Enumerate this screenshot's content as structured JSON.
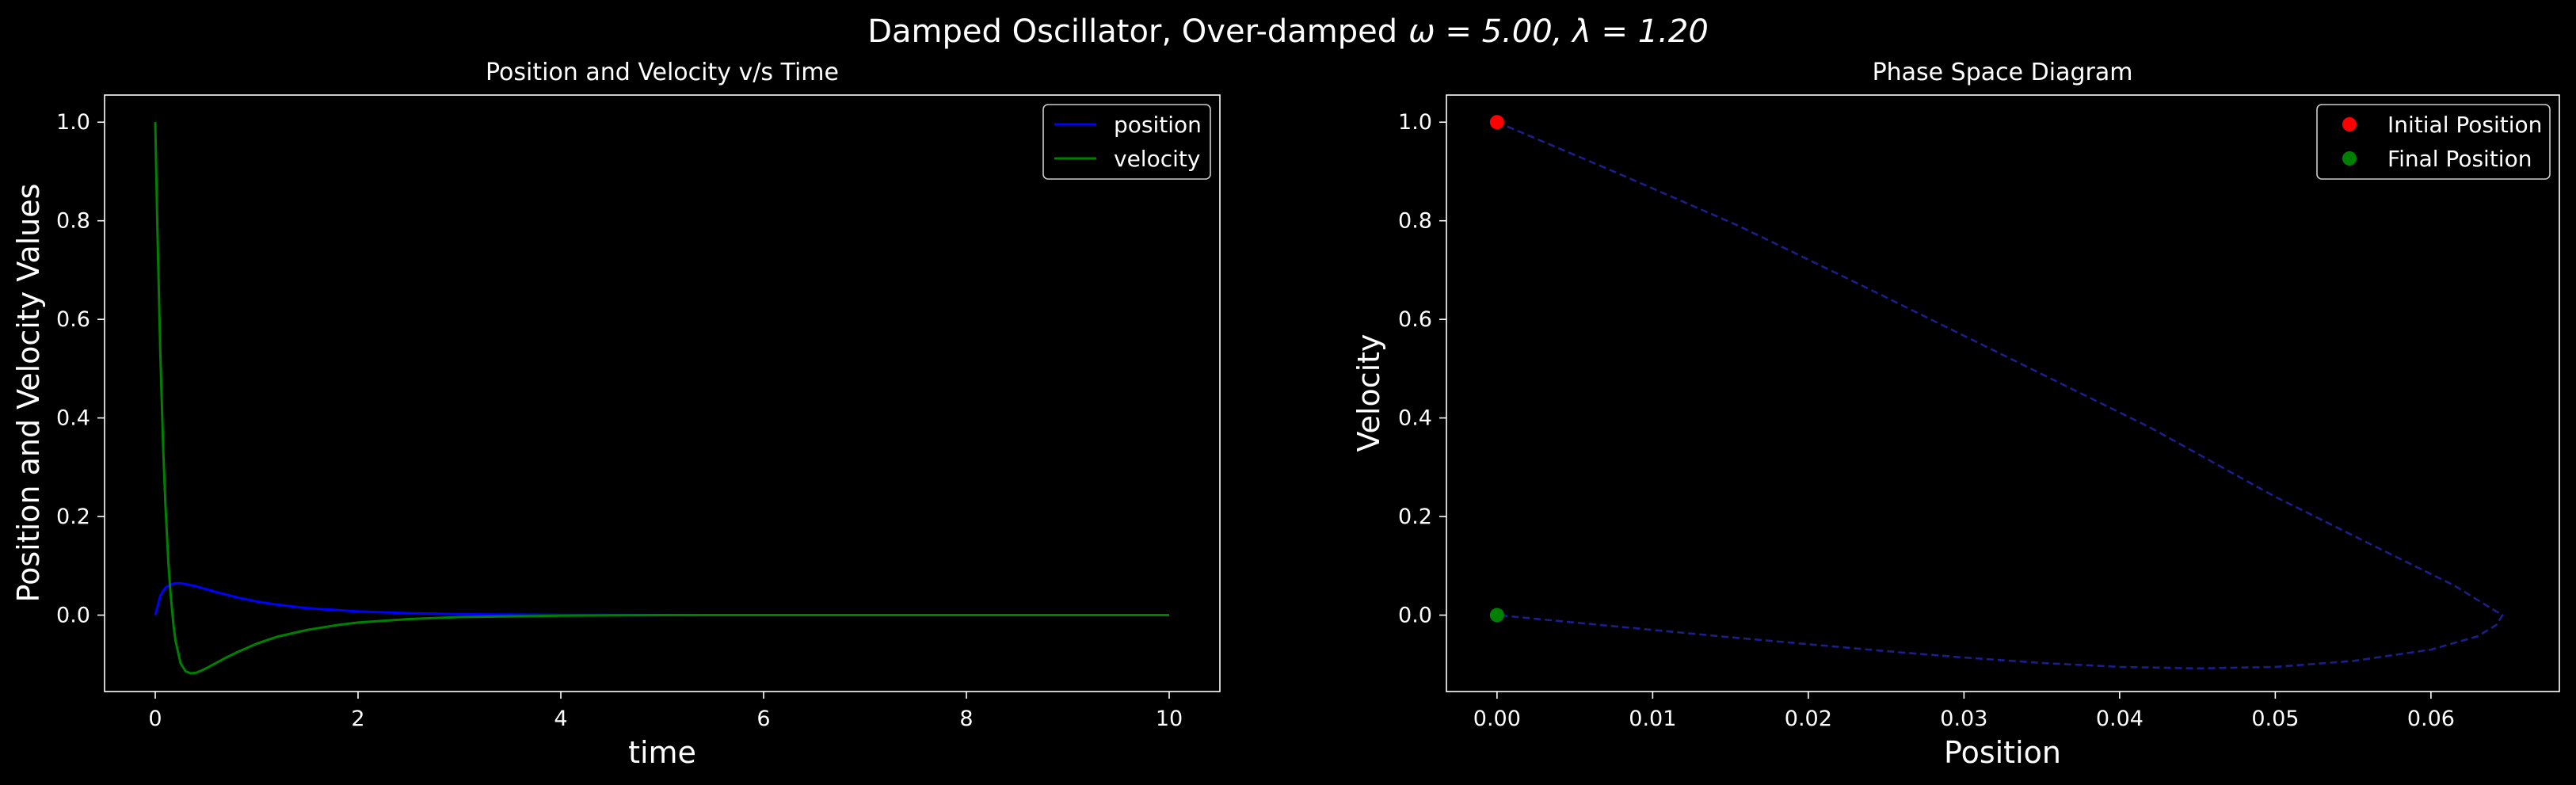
{
  "figure": {
    "suptitle": "Damped Oscillator, Over-damped",
    "suptitle_params": "ω = 5.00, λ = 1.20"
  },
  "colors": {
    "background": "#000000",
    "foreground": "#ffffff",
    "position": "#0000ff",
    "velocity": "#008000",
    "phase_line": "#1a1f8a",
    "initial": "#ff0000",
    "final": "#008000"
  },
  "chart_data": [
    {
      "type": "line",
      "title": "Position and Velocity v/s Time",
      "xlabel": "time",
      "ylabel": "Position and Velocity Values",
      "xlim": [
        -0.5,
        10.5
      ],
      "ylim": [
        -0.155,
        1.055
      ],
      "xticks": [
        0,
        2,
        4,
        6,
        8,
        10
      ],
      "xtick_labels": [
        "0",
        "2",
        "4",
        "6",
        "8",
        "10"
      ],
      "yticks": [
        0.0,
        0.2,
        0.4,
        0.6,
        0.8,
        1.0
      ],
      "ytick_labels": [
        "0.0",
        "0.2",
        "0.4",
        "0.6",
        "0.8",
        "1.0"
      ],
      "legend_position": "upper right",
      "grid": false,
      "series": [
        {
          "name": "position",
          "color_key": "position",
          "x": [
            0,
            0.05,
            0.1,
            0.15,
            0.2,
            0.25,
            0.3,
            0.4,
            0.5,
            0.6,
            0.8,
            1.0,
            1.2,
            1.5,
            2.0,
            2.5,
            3.0,
            4.0,
            5.0,
            6.0,
            7.0,
            8.0,
            9.0,
            10.0
          ],
          "y": [
            0,
            0.0394,
            0.0558,
            0.0623,
            0.0646,
            0.0645,
            0.063,
            0.0585,
            0.0528,
            0.0468,
            0.0362,
            0.0277,
            0.0212,
            0.0141,
            0.0074,
            0.0039,
            0.002,
            0.0006,
            0.0002,
            0.0001,
            0.0,
            0.0,
            0.0,
            0.0
          ]
        },
        {
          "name": "velocity",
          "color_key": "velocity",
          "x": [
            0,
            0.02,
            0.05,
            0.08,
            0.1,
            0.13,
            0.15,
            0.18,
            0.2,
            0.25,
            0.3,
            0.35,
            0.4,
            0.45,
            0.5,
            0.6,
            0.7,
            0.8,
            1.0,
            1.2,
            1.5,
            1.8,
            2.0,
            2.5,
            3.0,
            4.0,
            5.0,
            6.0,
            7.0,
            8.0,
            9.0,
            10.0
          ],
          "y": [
            1.0,
            0.79,
            0.53,
            0.33,
            0.225,
            0.105,
            0.046,
            -0.02,
            -0.052,
            -0.098,
            -0.114,
            -0.118,
            -0.117,
            -0.113,
            -0.108,
            -0.097,
            -0.086,
            -0.076,
            -0.058,
            -0.044,
            -0.03,
            -0.02,
            -0.015,
            -0.008,
            -0.004,
            -0.001,
            0.0,
            0.0,
            0.0,
            0.0,
            0.0,
            0.0
          ]
        }
      ]
    },
    {
      "type": "line",
      "title": "Phase Space Diagram",
      "xlabel": "Position",
      "ylabel": "Velocity",
      "xlim": [
        -0.00325,
        0.06825
      ],
      "ylim": [
        -0.155,
        1.055
      ],
      "xticks": [
        0.0,
        0.01,
        0.02,
        0.03,
        0.04,
        0.05,
        0.06
      ],
      "xtick_labels": [
        "0.00",
        "0.01",
        "0.02",
        "0.03",
        "0.04",
        "0.05",
        "0.06"
      ],
      "yticks": [
        0.0,
        0.2,
        0.4,
        0.6,
        0.8,
        1.0
      ],
      "ytick_labels": [
        "0.0",
        "0.2",
        "0.4",
        "0.6",
        "0.8",
        "1.0"
      ],
      "legend_position": "upper right",
      "grid": false,
      "trajectory": {
        "color_key": "phase_line",
        "style": "dashed",
        "x": [
          0,
          0.0075,
          0.0155,
          0.024,
          0.033,
          0.042,
          0.05,
          0.057,
          0.0615,
          0.0638,
          0.0646,
          0.0642,
          0.063,
          0.06,
          0.055,
          0.05,
          0.045,
          0.04,
          0.035,
          0.03,
          0.025,
          0.02,
          0.015,
          0.01,
          0.005,
          0.0
        ],
        "y": [
          1.0,
          0.9,
          0.79,
          0.66,
          0.52,
          0.38,
          0.24,
          0.13,
          0.06,
          0.015,
          0.0,
          -0.02,
          -0.043,
          -0.07,
          -0.093,
          -0.105,
          -0.108,
          -0.105,
          -0.097,
          -0.086,
          -0.073,
          -0.059,
          -0.045,
          -0.03,
          -0.015,
          0.0
        ]
      },
      "points": [
        {
          "name": "Initial Position",
          "x": 0.0,
          "y": 1.0,
          "color_key": "initial"
        },
        {
          "name": "Final Position",
          "x": 0.0,
          "y": 0.0,
          "color_key": "final"
        }
      ]
    }
  ]
}
